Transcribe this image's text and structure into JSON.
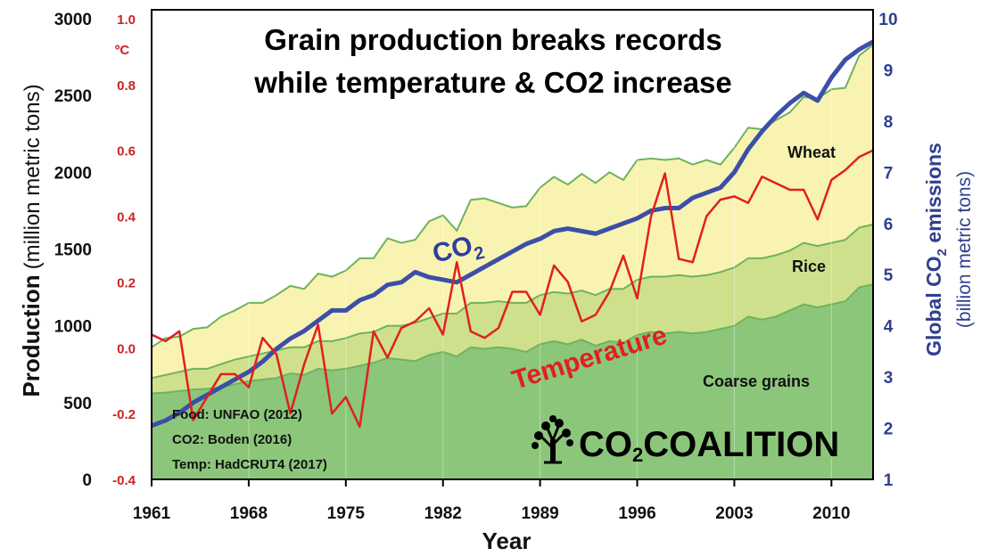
{
  "chart_data": {
    "type": "area",
    "title_lines": [
      "Grain production breaks records",
      "while temperature & CO2 increase"
    ],
    "xlabel": "Year",
    "x_ticks": [
      "1961",
      "1968",
      "1975",
      "1982",
      "1989",
      "1996",
      "2003",
      "2010"
    ],
    "xlim": [
      1961,
      2013
    ],
    "left_axis": {
      "label": "Production",
      "label_sub": "(million metric tons)",
      "ticks": [
        "0",
        "500",
        "1000",
        "1500",
        "2000",
        "2500",
        "3000"
      ],
      "ylim": [
        0,
        3000
      ]
    },
    "temp_axis": {
      "unit": "ºC",
      "ticks": [
        "-0.4",
        "-0.2",
        "0.0",
        "0.2",
        "0.4",
        "0.6",
        "0.8",
        "1.0"
      ],
      "ylim": [
        -0.4,
        1.0
      ]
    },
    "right_axis": {
      "label": "Global CO",
      "label_subscript": "2",
      "label_end": " emissions",
      "label_sub": "(billion metric tons)",
      "ticks": [
        "1",
        "2",
        "3",
        "4",
        "5",
        "6",
        "7",
        "8",
        "9",
        "10"
      ],
      "ylim": [
        1,
        10
      ]
    },
    "years": [
      1961,
      1962,
      1963,
      1964,
      1965,
      1966,
      1967,
      1968,
      1969,
      1970,
      1971,
      1972,
      1973,
      1974,
      1975,
      1976,
      1977,
      1978,
      1979,
      1980,
      1981,
      1982,
      1983,
      1984,
      1985,
      1986,
      1987,
      1988,
      1989,
      1990,
      1991,
      1992,
      1993,
      1994,
      1995,
      1996,
      1997,
      1998,
      1999,
      2000,
      2001,
      2002,
      2003,
      2004,
      2005,
      2006,
      2007,
      2008,
      2009,
      2010,
      2011,
      2012,
      2013
    ],
    "series": [
      {
        "name": "Coarse grains",
        "color": "#8cc67a",
        "values": [
          560,
          565,
          575,
          585,
          590,
          600,
          620,
          640,
          650,
          660,
          690,
          680,
          720,
          710,
          720,
          740,
          760,
          790,
          780,
          770,
          810,
          830,
          800,
          860,
          850,
          860,
          850,
          830,
          880,
          900,
          880,
          910,
          870,
          900,
          890,
          940,
          960,
          950,
          960,
          950,
          960,
          980,
          1000,
          1060,
          1040,
          1060,
          1100,
          1140,
          1120,
          1140,
          1160,
          1250,
          1270
        ]
      },
      {
        "name": "Rice",
        "color": "#cfe08c",
        "values": [
          660,
          680,
          700,
          720,
          720,
          750,
          780,
          800,
          820,
          840,
          860,
          860,
          900,
          900,
          920,
          950,
          960,
          1000,
          1000,
          1020,
          1050,
          1080,
          1080,
          1150,
          1150,
          1160,
          1150,
          1150,
          1200,
          1220,
          1210,
          1230,
          1200,
          1240,
          1240,
          1300,
          1320,
          1320,
          1330,
          1320,
          1330,
          1350,
          1380,
          1440,
          1440,
          1460,
          1490,
          1540,
          1520,
          1540,
          1560,
          1640,
          1660
        ]
      },
      {
        "name": "Wheat",
        "color": "#f9f3b2",
        "values": [
          860,
          920,
          930,
          980,
          990,
          1060,
          1100,
          1150,
          1150,
          1200,
          1260,
          1240,
          1340,
          1320,
          1360,
          1440,
          1440,
          1570,
          1540,
          1560,
          1680,
          1720,
          1620,
          1820,
          1830,
          1800,
          1770,
          1780,
          1900,
          1970,
          1920,
          1990,
          1930,
          2000,
          1950,
          2080,
          2090,
          2080,
          2090,
          2050,
          2080,
          2050,
          2160,
          2290,
          2280,
          2340,
          2390,
          2490,
          2480,
          2540,
          2550,
          2760,
          2830
        ]
      }
    ],
    "area_labels": [
      "Coarse grains",
      "Rice",
      "Wheat"
    ],
    "co2": {
      "name": "CO",
      "name_subscript": "2",
      "color": "#3b4fa8",
      "values": [
        2.05,
        2.15,
        2.3,
        2.5,
        2.65,
        2.8,
        2.95,
        3.1,
        3.3,
        3.55,
        3.75,
        3.9,
        4.1,
        4.3,
        4.3,
        4.5,
        4.6,
        4.8,
        4.85,
        5.05,
        4.95,
        4.9,
        4.85,
        5.0,
        5.15,
        5.3,
        5.45,
        5.6,
        5.7,
        5.85,
        5.9,
        5.85,
        5.8,
        5.9,
        6.0,
        6.1,
        6.25,
        6.3,
        6.3,
        6.5,
        6.6,
        6.7,
        7.0,
        7.45,
        7.8,
        8.1,
        8.35,
        8.55,
        8.4,
        8.85,
        9.2,
        9.4,
        9.55
      ]
    },
    "temperature": {
      "name": "Temperature",
      "color": "#e02020",
      "values": [
        0.04,
        0.02,
        0.05,
        -0.22,
        -0.15,
        -0.08,
        -0.08,
        -0.12,
        0.03,
        -0.02,
        -0.2,
        -0.05,
        0.07,
        -0.2,
        -0.15,
        -0.24,
        0.05,
        -0.03,
        0.06,
        0.08,
        0.12,
        0.04,
        0.26,
        0.05,
        0.03,
        0.06,
        0.17,
        0.17,
        0.1,
        0.25,
        0.2,
        0.08,
        0.1,
        0.17,
        0.28,
        0.15,
        0.4,
        0.53,
        0.27,
        0.26,
        0.4,
        0.45,
        0.46,
        0.44,
        0.52,
        0.5,
        0.48,
        0.48,
        0.39,
        0.51,
        0.54,
        0.58,
        0.6
      ]
    },
    "sources": [
      "Food: UNFAO (2012)",
      "CO2: Boden (2016)",
      "Temp: HadCRUT4 (2017)"
    ],
    "logo": {
      "text_a": "CO",
      "text_sub": "2",
      "text_b": "COALITION",
      "icon": "tree-icon"
    }
  }
}
